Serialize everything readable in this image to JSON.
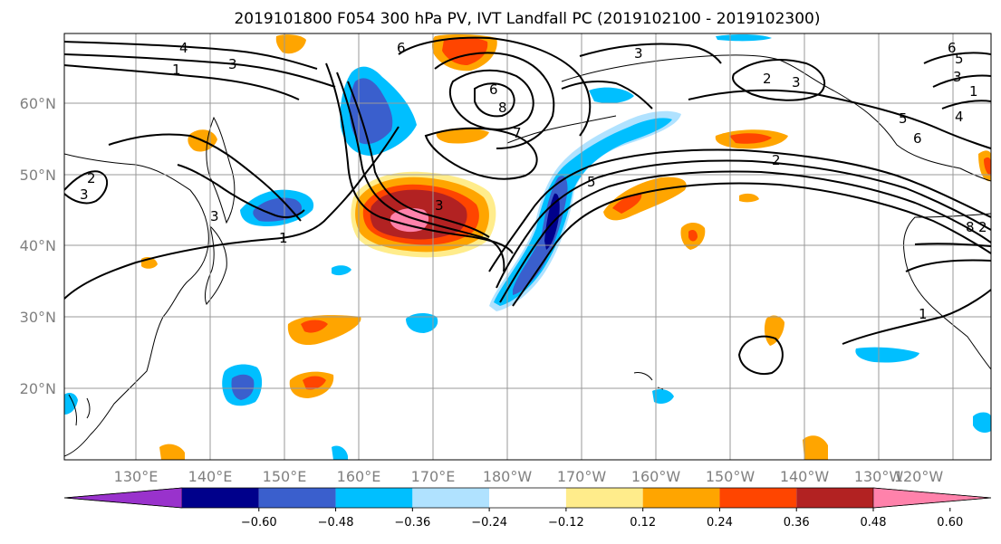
{
  "title": "2019101800 F054 300 hPa PV, IVT Landfall PC (2019102100 - 2019102300)",
  "lat_labels": [
    "60°N",
    "50°N",
    "40°N",
    "30°N",
    "20°N"
  ],
  "lon_labels": [
    "130°E",
    "140°E",
    "150°E",
    "160°E",
    "170°E",
    "180°W",
    "170°W",
    "160°W",
    "150°W",
    "140°W",
    "130°W",
    "120°W"
  ],
  "colorbar": {
    "ticks": [
      "−0.60",
      "−0.48",
      "−0.36",
      "−0.24",
      "−0.12",
      "0.12",
      "0.24",
      "0.36",
      "0.48",
      "0.60"
    ],
    "colors": [
      "#9932cc",
      "#00008b",
      "#3a5fcd",
      "#00bfff",
      "#b0e2ff",
      "#ffffff",
      "#ffec8b",
      "#ffa500",
      "#ff4500",
      "#b22222",
      "#ff82ab"
    ]
  },
  "colors": {
    "strong_neg": "#00008b",
    "mid_neg": "#3a5fcd",
    "light_neg": "#00bfff",
    "pale_neg": "#b0e2ff",
    "pale_pos": "#ffec8b",
    "light_pos": "#ffa500",
    "mid_pos": "#ff4500",
    "strong_pos": "#b22222",
    "max_pos": "#ff82ab",
    "grid": "#999999",
    "contour": "#000000"
  },
  "contour_labels": [
    "6",
    "4",
    "3",
    "1",
    "6",
    "3",
    "2",
    "3",
    "6",
    "5",
    "8",
    "3",
    "1",
    "2",
    "3",
    "6",
    "5",
    "4",
    "7",
    "2",
    "3",
    "5",
    "3",
    "1",
    "1",
    "8",
    "2"
  ]
}
